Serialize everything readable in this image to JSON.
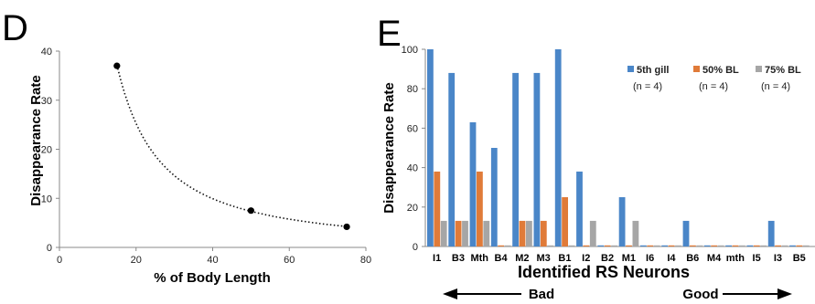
{
  "panel_d": {
    "letter": "D",
    "ylabel": "Disappearance Rate",
    "xlabel": "% of Body Length"
  },
  "panel_e": {
    "letter": "E",
    "ylabel": "Disappearance Rate",
    "xlabel": "Identified RS Neurons",
    "left_arrow_label": "Bad",
    "right_arrow_label": "Good"
  },
  "chart_data": [
    {
      "type": "scatter",
      "x": [
        15,
        50,
        75
      ],
      "y": [
        37,
        7.5,
        4.2
      ],
      "trendline": "dotted curve",
      "xlim": [
        0,
        80
      ],
      "ylim": [
        0,
        40
      ],
      "xticks": [
        0,
        20,
        40,
        60,
        80
      ],
      "yticks": [
        0,
        10,
        20,
        30,
        40
      ],
      "xlabel": "% of Body Length",
      "ylabel": "Disappearance Rate",
      "grid": false
    },
    {
      "type": "bar",
      "categories": [
        "I1",
        "B3",
        "Mth",
        "B4",
        "M2",
        "M3",
        "B1",
        "I2",
        "B2",
        "M1",
        "I6",
        "I4",
        "B6",
        "M4",
        "mth",
        "I5",
        "I3",
        "B5"
      ],
      "series": [
        {
          "name": "5th gill",
          "sub": "(n = 4)",
          "color": "#4a86c8",
          "values": [
            100,
            88,
            63,
            50,
            88,
            88,
            100,
            38,
            0,
            25,
            0,
            0,
            13,
            0,
            0,
            0,
            13,
            0
          ]
        },
        {
          "name": "50% BL",
          "sub": "(n = 4)",
          "color": "#e07b39",
          "values": [
            38,
            13,
            38,
            0,
            13,
            13,
            25,
            0,
            0,
            0,
            0,
            0,
            0,
            0,
            0,
            0,
            0,
            0
          ]
        },
        {
          "name": "75% BL",
          "sub": "(n = 4)",
          "color": "#a6a6a6",
          "values": [
            13,
            13,
            13,
            0,
            13,
            0,
            0,
            13,
            0,
            13,
            0,
            0,
            0,
            0,
            0,
            0,
            0,
            0
          ]
        }
      ],
      "ylim": [
        0,
        100
      ],
      "yticks": [
        0,
        20,
        40,
        60,
        80,
        100
      ],
      "xlabel": "Identified RS Neurons",
      "ylabel": "Disappearance Rate",
      "legend_position": "top-right",
      "grid": false
    }
  ]
}
